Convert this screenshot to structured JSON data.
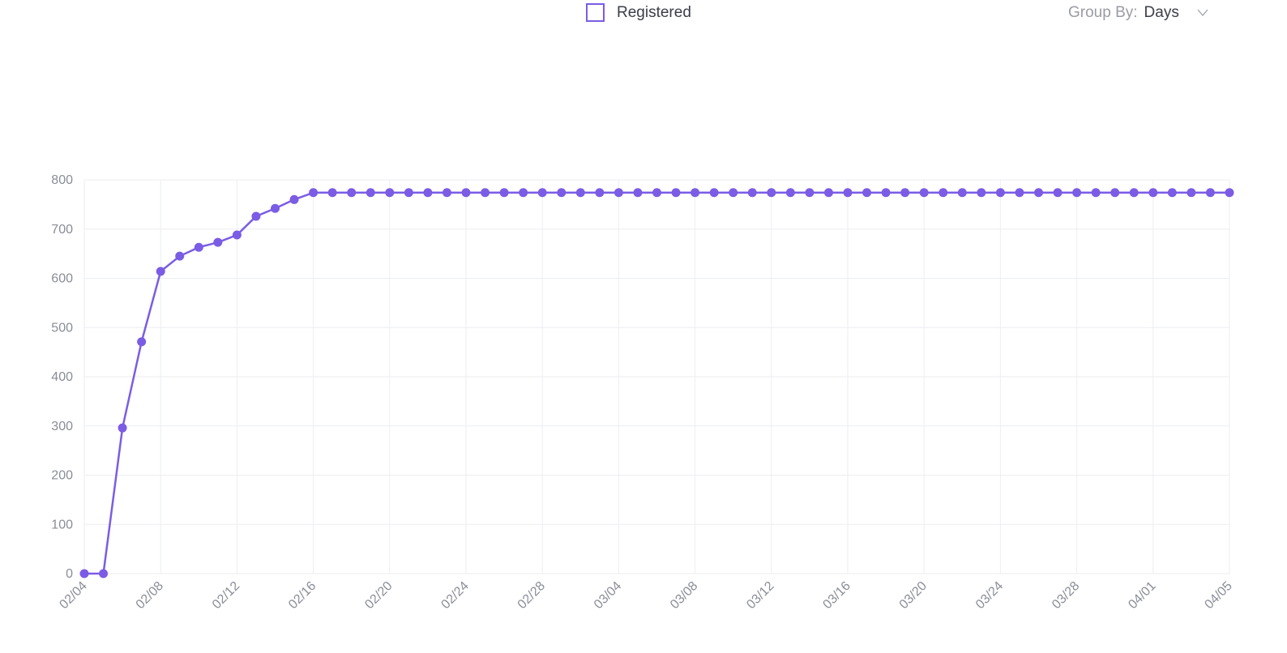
{
  "chart_data": {
    "type": "line",
    "categories": [
      "02/04",
      null,
      null,
      null,
      "02/08",
      null,
      null,
      null,
      "02/12",
      null,
      null,
      null,
      "02/16",
      null,
      null,
      null,
      "02/20",
      null,
      null,
      null,
      "02/24",
      null,
      null,
      null,
      "02/28",
      null,
      null,
      null,
      "03/04",
      null,
      null,
      null,
      "03/08",
      null,
      null,
      null,
      "03/12",
      null,
      null,
      null,
      "03/16",
      null,
      null,
      null,
      "03/20",
      null,
      null,
      null,
      "03/24",
      null,
      null,
      null,
      "03/28",
      null,
      null,
      null,
      "04/01",
      null,
      null,
      null,
      "04/05"
    ],
    "series": [
      {
        "name": "Registered",
        "color": "#7b5ce5",
        "values": [
          0,
          0,
          296,
          471,
          614,
          645,
          663,
          673,
          688,
          726,
          742,
          760,
          774,
          774,
          774,
          774,
          774,
          774,
          774,
          774,
          774,
          774,
          774,
          774,
          774,
          774,
          774,
          774,
          774,
          774,
          774,
          774,
          774,
          774,
          774,
          774,
          774,
          774,
          774,
          774,
          774,
          774,
          774,
          774,
          774,
          774,
          774,
          774,
          774,
          774,
          774,
          774,
          774,
          774,
          774,
          774,
          774,
          774,
          774,
          774,
          774
        ]
      }
    ],
    "ylim": [
      0,
      800
    ],
    "yticks": [
      0,
      100,
      200,
      300,
      400,
      500,
      600,
      700,
      800
    ],
    "grid": true
  },
  "controls": {
    "group_by_label": "Group By:",
    "group_by_value": "Days"
  }
}
